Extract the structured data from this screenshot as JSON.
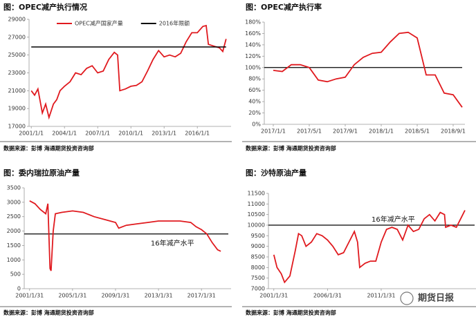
{
  "chart_data": [
    {
      "type": "line",
      "title": "图：OPEC减产执行情况",
      "source": "数据来源：彭博     海通期货投资咨询部",
      "xlim": [
        2000.8,
        2018.8
      ],
      "xticks": [
        {
          "value": 2001,
          "label": "2001/1/1"
        },
        {
          "value": 2004,
          "label": "2004/1/1"
        },
        {
          "value": 2007,
          "label": "2007/1/1"
        },
        {
          "value": 2010,
          "label": "2010/1/1"
        },
        {
          "value": 2013,
          "label": "2013/1/1"
        },
        {
          "value": 2016,
          "label": "2016/1/1"
        }
      ],
      "ylim": [
        17000,
        29000
      ],
      "yticks": [
        17000,
        19000,
        21000,
        23000,
        25000,
        27000,
        29000
      ],
      "series": [
        {
          "name": "OPEC减产国家产量",
          "color": "#e0191e",
          "x": [
            2001.0,
            2001.3,
            2001.6,
            2002.0,
            2002.3,
            2002.6,
            2003.0,
            2003.3,
            2003.6,
            2004.0,
            2004.5,
            2005.0,
            2005.5,
            2006.0,
            2006.5,
            2007.0,
            2007.5,
            2008.0,
            2008.5,
            2008.8,
            2009.0,
            2009.5,
            2010.0,
            2010.5,
            2011.0,
            2011.5,
            2012.0,
            2012.5,
            2013.0,
            2013.5,
            2014.0,
            2014.5,
            2015.0,
            2015.5,
            2016.0,
            2016.5,
            2016.8,
            2017.0,
            2017.5,
            2018.0,
            2018.3,
            2018.6
          ],
          "values": [
            21000,
            20500,
            21200,
            18500,
            19500,
            18000,
            19500,
            20000,
            21000,
            21500,
            22000,
            23000,
            22800,
            23500,
            23800,
            23000,
            23200,
            24500,
            25300,
            25000,
            21000,
            21200,
            21500,
            21600,
            22000,
            23200,
            24500,
            25500,
            24800,
            25000,
            24800,
            25200,
            26500,
            27500,
            27500,
            28200,
            28300,
            26200,
            26000,
            25800,
            25400,
            26800
          ]
        },
        {
          "name": "2016年限额",
          "color": "#000000",
          "x": [
            2001.0,
            2018.6
          ],
          "values": [
            25900,
            25900
          ]
        }
      ]
    },
    {
      "type": "line",
      "title": "图：OPEC减产执行率",
      "source": "数据来源：彭博     海通期货投资咨询部",
      "categories": [
        "2017/1/1",
        null,
        null,
        null,
        "2017/5/1",
        null,
        null,
        null,
        "2017/9/1",
        null,
        null,
        null,
        "2018/1/1",
        null,
        null,
        null,
        "2018/5/1",
        null,
        null,
        null,
        "2018/9/1",
        null
      ],
      "ylim": [
        0,
        180
      ],
      "yticks": [
        {
          "value": 0,
          "label": "0%"
        },
        {
          "value": 20,
          "label": "20%"
        },
        {
          "value": 40,
          "label": "40%"
        },
        {
          "value": 60,
          "label": "60%"
        },
        {
          "value": 80,
          "label": "80%"
        },
        {
          "value": 100,
          "label": "100%"
        },
        {
          "value": 120,
          "label": "120%"
        },
        {
          "value": 140,
          "label": "140%"
        },
        {
          "value": 160,
          "label": "160%"
        },
        {
          "value": 180,
          "label": "180%"
        }
      ],
      "hline": {
        "value": 100,
        "color": "#000000"
      },
      "series": [
        {
          "color": "#e0191e",
          "values": [
            95,
            93,
            105,
            105,
            100,
            78,
            75,
            80,
            83,
            105,
            118,
            125,
            127,
            145,
            160,
            162,
            152,
            87,
            87,
            55,
            52,
            30
          ]
        }
      ]
    },
    {
      "type": "line",
      "title": "图：委内瑞拉原油产量",
      "source": "数据来源：彭博     海通期货投资咨询部",
      "xlim": [
        2000.5,
        2019.5
      ],
      "xticks": [
        {
          "value": 2001,
          "label": "2001/1/31"
        },
        {
          "value": 2005,
          "label": "2005/1/31"
        },
        {
          "value": 2009,
          "label": "2009/1/31"
        },
        {
          "value": 2013,
          "label": "2013/1/31"
        },
        {
          "value": 2017,
          "label": "2017/1/31"
        }
      ],
      "ylim": [
        0,
        3500
      ],
      "yticks": [
        0,
        500,
        1000,
        1500,
        2000,
        2500,
        3000,
        3500
      ],
      "hline": {
        "value": 1900,
        "color": "#000000"
      },
      "annotation": "16年减产水平",
      "series": [
        {
          "color": "#e0191e",
          "x": [
            2001.0,
            2001.5,
            2002.0,
            2002.5,
            2002.7,
            2002.9,
            2003.0,
            2003.2,
            2003.4,
            2004.0,
            2005.0,
            2006.0,
            2007.0,
            2008.0,
            2009.0,
            2009.3,
            2010.0,
            2011.0,
            2012.0,
            2013.0,
            2014.0,
            2015.0,
            2016.0,
            2016.5,
            2017.0,
            2017.5,
            2018.0,
            2018.5,
            2018.8
          ],
          "values": [
            3050,
            2950,
            2750,
            2600,
            2950,
            700,
            620,
            2000,
            2600,
            2650,
            2700,
            2650,
            2500,
            2400,
            2300,
            2100,
            2200,
            2250,
            2300,
            2350,
            2350,
            2350,
            2300,
            2150,
            2050,
            1900,
            1600,
            1350,
            1300
          ]
        }
      ]
    },
    {
      "type": "line",
      "title": "图：沙特原油产量",
      "source": "数据来源：彭博     海通期货投资咨询部",
      "xlim": [
        2000.5,
        2019.7
      ],
      "xticks": [
        {
          "value": 2001,
          "label": "2001/1/31"
        },
        {
          "value": 2006,
          "label": "2006/1/31"
        },
        {
          "value": 2011,
          "label": "2011/1/31"
        }
      ],
      "ylim": [
        7000,
        11500
      ],
      "yticks": [
        7000,
        7500,
        8000,
        8500,
        9000,
        9500,
        10000,
        10500,
        11000,
        11500
      ],
      "hline": {
        "value": 10000,
        "color": "#000000"
      },
      "annotation": "16年减产水平",
      "series": [
        {
          "color": "#e0191e",
          "x": [
            2001.0,
            2001.3,
            2001.7,
            2002.0,
            2002.5,
            2003.0,
            2003.3,
            2003.6,
            2004.0,
            2004.5,
            2005.0,
            2005.5,
            2006.0,
            2006.5,
            2007.0,
            2007.5,
            2008.0,
            2008.5,
            2008.8,
            2009.0,
            2009.5,
            2010.0,
            2010.5,
            2011.0,
            2011.5,
            2012.0,
            2012.5,
            2013.0,
            2013.5,
            2014.0,
            2014.5,
            2015.0,
            2015.5,
            2016.0,
            2016.5,
            2016.9,
            2017.0,
            2017.5,
            2018.0,
            2018.5,
            2018.8
          ],
          "values": [
            8600,
            8000,
            7700,
            7300,
            7600,
            8800,
            9600,
            9500,
            9000,
            9200,
            9600,
            9500,
            9300,
            9000,
            8600,
            8700,
            9200,
            9700,
            9200,
            8000,
            8200,
            8300,
            8300,
            9200,
            9800,
            9900,
            9800,
            9300,
            10000,
            9700,
            9800,
            10300,
            10500,
            10200,
            10600,
            10500,
            9900,
            10000,
            9900,
            10400,
            10700
          ]
        }
      ]
    }
  ],
  "watermark": "期货日报"
}
